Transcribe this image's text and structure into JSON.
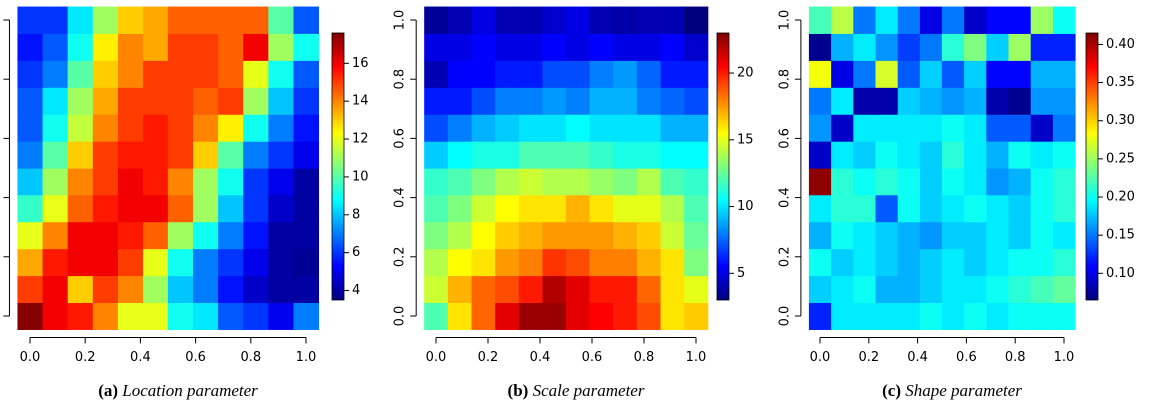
{
  "chart_data": [
    {
      "type": "heatmap",
      "caption_label": "(a)",
      "caption": "Location parameter",
      "x": [
        0,
        0.091,
        0.182,
        0.273,
        0.364,
        0.455,
        0.545,
        0.636,
        0.727,
        0.818,
        0.909,
        1
      ],
      "y": [
        0,
        0.091,
        0.182,
        0.273,
        0.364,
        0.455,
        0.545,
        0.636,
        0.727,
        0.818,
        0.909,
        1
      ],
      "z": [
        [
          17.5,
          16,
          15.5,
          14,
          12,
          12,
          9,
          8.5,
          6.5,
          6,
          5,
          7
        ],
        [
          15,
          16,
          13,
          15,
          14,
          11,
          8,
          7,
          5.5,
          4.5,
          4,
          4
        ],
        [
          13.5,
          15.5,
          16,
          16,
          15,
          12,
          9,
          7,
          6,
          5,
          4,
          3.8
        ],
        [
          12,
          14,
          16,
          16,
          15.5,
          14.5,
          11,
          9,
          7,
          5.5,
          4,
          4
        ],
        [
          9.5,
          12,
          14.5,
          15.5,
          16,
          16,
          14.5,
          11,
          8,
          6,
          4.5,
          4
        ],
        [
          8,
          11,
          14,
          15,
          16,
          15.5,
          14,
          11,
          9,
          6,
          5,
          4
        ],
        [
          7,
          10,
          13,
          15,
          15.5,
          15.5,
          15,
          13,
          10,
          7,
          6,
          5
        ],
        [
          6.5,
          9,
          11.5,
          14,
          15,
          15.5,
          15,
          14,
          12.5,
          9,
          7,
          5.5
        ],
        [
          6.5,
          8.5,
          11,
          13.5,
          15,
          15,
          15,
          14.5,
          15,
          11,
          8,
          6
        ],
        [
          6,
          7,
          10,
          13,
          14,
          15,
          15,
          15,
          14.5,
          12,
          9,
          6.5
        ],
        [
          5.5,
          6.5,
          9,
          12.5,
          14,
          13.5,
          15,
          15,
          14.5,
          16,
          11,
          9
        ],
        [
          6,
          6,
          8.5,
          11,
          13,
          13.5,
          14.5,
          14.5,
          14.5,
          14.5,
          10,
          6.5
        ]
      ],
      "xlim": [
        -0.045,
        1.045
      ],
      "ylim": [
        -0.045,
        1.045
      ],
      "xticks": [
        {
          "value": 0,
          "label": "0.0"
        },
        {
          "value": 0.2,
          "label": "0.2"
        },
        {
          "value": 0.4,
          "label": "0.4"
        },
        {
          "value": 0.6,
          "label": "0.6"
        },
        {
          "value": 0.8,
          "label": "0.8"
        },
        {
          "value": 1,
          "label": "1.0"
        }
      ],
      "yticks": [
        {
          "value": 0,
          "label": "0.0"
        },
        {
          "value": 0.2,
          "label": "0.2"
        },
        {
          "value": 0.4,
          "label": "0.4"
        },
        {
          "value": 0.6,
          "label": "0.6"
        },
        {
          "value": 0.8,
          "label": "0.8"
        },
        {
          "value": 1,
          "label": "1.0"
        }
      ],
      "zlim": [
        3.5,
        17.6
      ],
      "zticks": [
        4,
        6,
        8,
        10,
        12,
        14,
        16
      ],
      "colormap": [
        "#00007F",
        "#0000FF",
        "#007FFF",
        "#00FFFF",
        "#7FFF7F",
        "#FFFF00",
        "#FF7F00",
        "#FF0000",
        "#7F0000"
      ]
    },
    {
      "type": "heatmap",
      "caption_label": "(b)",
      "caption": "Scale parameter",
      "x": [
        0,
        0.091,
        0.182,
        0.273,
        0.364,
        0.455,
        0.545,
        0.636,
        0.727,
        0.818,
        0.909,
        1
      ],
      "y": [
        0,
        0.091,
        0.182,
        0.273,
        0.364,
        0.455,
        0.545,
        0.636,
        0.727,
        0.818,
        0.909,
        1
      ],
      "z": [
        [
          12,
          16,
          18.5,
          21,
          22.5,
          22.5,
          21,
          20.5,
          20,
          19,
          16,
          16.5
        ],
        [
          14.5,
          17,
          18.5,
          19,
          20,
          22,
          21,
          20,
          20,
          18.5,
          16,
          15
        ],
        [
          14,
          15.5,
          16,
          17.5,
          18,
          19.5,
          19,
          18,
          18,
          17,
          16,
          13
        ],
        [
          13,
          14,
          15.5,
          16.5,
          17,
          17.5,
          17.5,
          17.5,
          17,
          16.5,
          14.5,
          12.5
        ],
        [
          12,
          13,
          14.5,
          15.5,
          16,
          16,
          17,
          16,
          15,
          15,
          14,
          12
        ],
        [
          11.5,
          12,
          13,
          14,
          14.5,
          14,
          14,
          13.5,
          13,
          14,
          12,
          11.5
        ],
        [
          9.5,
          10.5,
          11,
          11,
          12,
          12,
          12,
          11.5,
          11,
          11,
          10.5,
          10.5
        ],
        [
          7,
          8,
          9,
          9.5,
          10,
          10,
          10.5,
          10,
          10,
          10,
          9,
          9
        ],
        [
          6,
          6,
          7,
          8,
          8,
          8.5,
          8,
          9,
          9,
          8,
          7.5,
          7
        ],
        [
          4,
          5.5,
          5.5,
          6,
          6,
          7,
          7,
          8,
          8.5,
          7.5,
          6,
          6
        ],
        [
          5,
          5,
          5.5,
          5,
          5,
          5.5,
          5,
          5.5,
          5,
          5,
          5.5,
          4.5
        ],
        [
          3.5,
          4,
          5,
          4,
          4,
          4.5,
          5,
          4,
          3.8,
          4,
          4,
          3
        ]
      ],
      "xlim": [
        -0.045,
        1.045
      ],
      "ylim": [
        -0.045,
        1.045
      ],
      "xticks": [
        {
          "value": 0,
          "label": "0.0"
        },
        {
          "value": 0.2,
          "label": "0.2"
        },
        {
          "value": 0.4,
          "label": "0.4"
        },
        {
          "value": 0.6,
          "label": "0.6"
        },
        {
          "value": 0.8,
          "label": "0.8"
        },
        {
          "value": 1,
          "label": "1.0"
        }
      ],
      "yticks": [
        {
          "value": 0,
          "label": "0.0"
        },
        {
          "value": 0.2,
          "label": "0.2"
        },
        {
          "value": 0.4,
          "label": "0.4"
        },
        {
          "value": 0.6,
          "label": "0.6"
        },
        {
          "value": 0.8,
          "label": "0.8"
        },
        {
          "value": 1,
          "label": "1.0"
        }
      ],
      "zlim": [
        3,
        23
      ],
      "zticks": [
        5,
        10,
        15,
        20
      ],
      "colormap": [
        "#00007F",
        "#0000FF",
        "#007FFF",
        "#00FFFF",
        "#7FFF7F",
        "#FFFF00",
        "#FF7F00",
        "#FF0000",
        "#7F0000"
      ]
    },
    {
      "type": "heatmap",
      "caption_label": "(c)",
      "caption": "Shape parameter",
      "x": [
        0,
        0.091,
        0.182,
        0.273,
        0.364,
        0.455,
        0.545,
        0.636,
        0.727,
        0.818,
        0.909,
        1
      ],
      "y": [
        0,
        0.091,
        0.182,
        0.273,
        0.364,
        0.455,
        0.545,
        0.636,
        0.727,
        0.818,
        0.909,
        1
      ],
      "z": [
        [
          0.12,
          0.19,
          0.19,
          0.19,
          0.19,
          0.2,
          0.19,
          0.2,
          0.19,
          0.2,
          0.2,
          0.2
        ],
        [
          0.18,
          0.19,
          0.2,
          0.17,
          0.17,
          0.18,
          0.19,
          0.19,
          0.2,
          0.21,
          0.22,
          0.23
        ],
        [
          0.2,
          0.18,
          0.19,
          0.18,
          0.17,
          0.18,
          0.19,
          0.18,
          0.19,
          0.2,
          0.2,
          0.21
        ],
        [
          0.17,
          0.2,
          0.19,
          0.18,
          0.17,
          0.16,
          0.18,
          0.18,
          0.19,
          0.18,
          0.2,
          0.19
        ],
        [
          0.19,
          0.21,
          0.21,
          0.14,
          0.2,
          0.18,
          0.19,
          0.2,
          0.19,
          0.18,
          0.2,
          0.21
        ],
        [
          0.41,
          0.21,
          0.2,
          0.21,
          0.2,
          0.18,
          0.2,
          0.19,
          0.16,
          0.17,
          0.2,
          0.21
        ],
        [
          0.09,
          0.19,
          0.18,
          0.2,
          0.19,
          0.18,
          0.21,
          0.19,
          0.17,
          0.2,
          0.19,
          0.2
        ],
        [
          0.16,
          0.09,
          0.19,
          0.19,
          0.19,
          0.19,
          0.2,
          0.19,
          0.14,
          0.14,
          0.09,
          0.15
        ],
        [
          0.15,
          0.19,
          0.08,
          0.08,
          0.18,
          0.17,
          0.16,
          0.17,
          0.08,
          0.07,
          0.16,
          0.16
        ],
        [
          0.28,
          0.1,
          0.15,
          0.27,
          0.14,
          0.18,
          0.14,
          0.18,
          0.11,
          0.11,
          0.17,
          0.17
        ],
        [
          0.07,
          0.17,
          0.19,
          0.16,
          0.13,
          0.15,
          0.21,
          0.24,
          0.18,
          0.25,
          0.12,
          0.12
        ],
        [
          0.22,
          0.26,
          0.15,
          0.19,
          0.15,
          0.1,
          0.15,
          0.09,
          0.11,
          0.11,
          0.25,
          0.2
        ]
      ],
      "xlim": [
        -0.045,
        1.045
      ],
      "ylim": [
        -0.045,
        1.045
      ],
      "xticks": [
        {
          "value": 0,
          "label": "0.0"
        },
        {
          "value": 0.2,
          "label": "0.2"
        },
        {
          "value": 0.4,
          "label": "0.4"
        },
        {
          "value": 0.6,
          "label": "0.6"
        },
        {
          "value": 0.8,
          "label": "0.8"
        },
        {
          "value": 1,
          "label": "1.0"
        }
      ],
      "yticks": [
        {
          "value": 0,
          "label": "0.0"
        },
        {
          "value": 0.2,
          "label": "0.2"
        },
        {
          "value": 0.4,
          "label": "0.4"
        },
        {
          "value": 0.6,
          "label": "0.6"
        },
        {
          "value": 0.8,
          "label": "0.8"
        },
        {
          "value": 1,
          "label": "1.0"
        }
      ],
      "zlim": [
        0.065,
        0.415
      ],
      "zticks": [
        {
          "value": 0.1,
          "label": "0.10"
        },
        0.15,
        {
          "value": 0.2,
          "label": "0.20"
        },
        0.25,
        {
          "value": 0.3,
          "label": "0.30"
        },
        0.35,
        {
          "value": 0.4,
          "label": "0.40"
        }
      ],
      "colormap": [
        "#00007F",
        "#0000FF",
        "#007FFF",
        "#00FFFF",
        "#7FFF7F",
        "#FFFF00",
        "#FF7F00",
        "#FF0000",
        "#7F0000"
      ]
    }
  ]
}
